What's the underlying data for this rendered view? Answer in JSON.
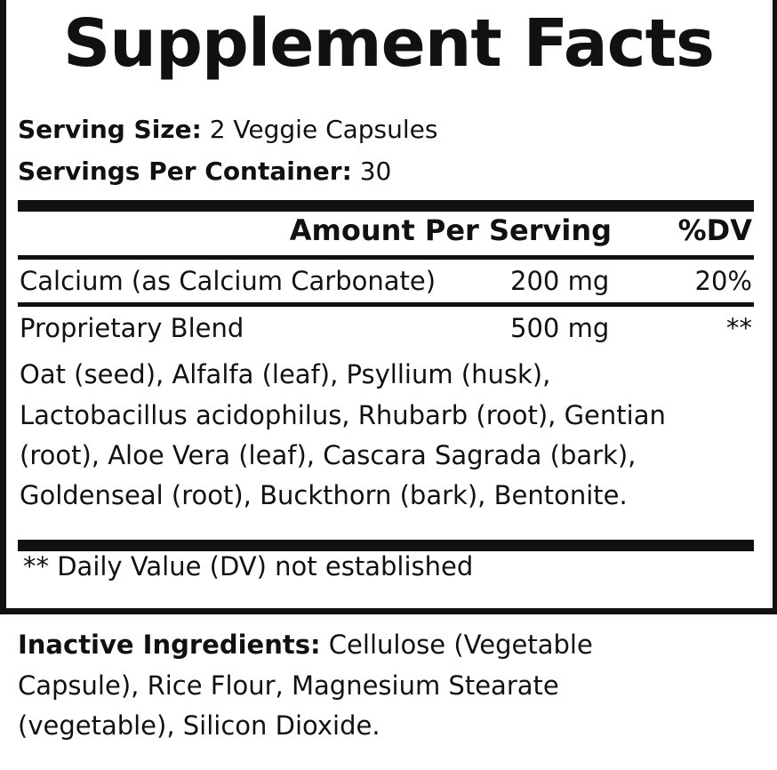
{
  "title": "Supplement Facts",
  "serving_size": {
    "label": "Serving Size:",
    "value": " 2 Veggie Capsules"
  },
  "servings_per_container": {
    "label": "Servings Per Container:",
    "value": " 30"
  },
  "table": {
    "headers": {
      "amount": "Amount Per Serving",
      "dv": "%DV"
    },
    "rows": [
      {
        "name": "Calcium (as Calcium Carbonate)",
        "amount": "200 mg",
        "dv": "20%"
      },
      {
        "name": "Proprietary Blend",
        "amount": "500 mg",
        "dv": "**"
      }
    ],
    "blend_ingredients": [
      "Oat (seed), Alfalfa (leaf), Psyllium (husk),",
      "Lactobacillus acidophilus, Rhubarb (root), Gentian",
      "(root), Aloe Vera (leaf), Cascara Sagrada (bark),",
      "Goldenseal (root), Buckthorn (bark), Bentonite."
    ]
  },
  "footnote": "** Daily Value (DV) not established",
  "inactive": {
    "label": "Inactive Ingredients:",
    "lines": [
      " Cellulose (Vegetable",
      "Capsule), Rice Flour, Magnesium Stearate",
      "(vegetable), Silicon Dioxide."
    ]
  }
}
